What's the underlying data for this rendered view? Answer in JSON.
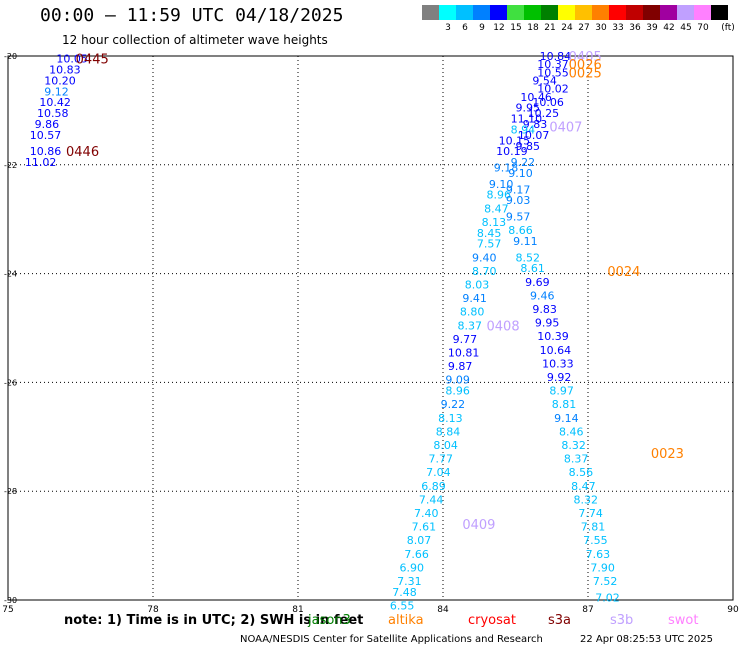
{
  "header": {
    "title": "00:00 – 11:59 UTC 04/18/2025",
    "subtitle": "12 hour collection of altimeter wave heights"
  },
  "colorbar": {
    "unit": "(ft)",
    "swatches": [
      {
        "color": "#808080",
        "label": ""
      },
      {
        "color": "#00ffff",
        "label": "3"
      },
      {
        "color": "#00c0ff",
        "label": "6"
      },
      {
        "color": "#0080ff",
        "label": "9"
      },
      {
        "color": "#0000ff",
        "label": "12"
      },
      {
        "color": "#40e040",
        "label": "15"
      },
      {
        "color": "#00c000",
        "label": "18"
      },
      {
        "color": "#008000",
        "label": "21"
      },
      {
        "color": "#ffff00",
        "label": "24"
      },
      {
        "color": "#ffc000",
        "label": "27"
      },
      {
        "color": "#ff8000",
        "label": "30"
      },
      {
        "color": "#ff0000",
        "label": "33"
      },
      {
        "color": "#c00000",
        "label": "36"
      },
      {
        "color": "#800000",
        "label": "39"
      },
      {
        "color": "#a000a0",
        "label": "42"
      },
      {
        "color": "#c0a0ff",
        "label": "45"
      },
      {
        "color": "#ff80ff",
        "label": "70"
      },
      {
        "color": "#000000",
        "label": ""
      }
    ]
  },
  "map_data": {
    "lon_range": [
      75,
      90
    ],
    "lat_range": [
      -30,
      -20
    ],
    "lon_ticks": [
      "75",
      "78",
      "81",
      "84",
      "87",
      "90"
    ],
    "lat_ticks": [
      "-20",
      "-22",
      "-24",
      "-26",
      "-28",
      "-30"
    ],
    "track_labels": [
      {
        "text": "0445",
        "lon": 76.4,
        "lat": -20.05,
        "color": "#800000"
      },
      {
        "text": "0446",
        "lon": 76.2,
        "lat": -21.75,
        "color": "#800000"
      },
      {
        "text": "0405",
        "lon": 86.6,
        "lat": -20.0,
        "color": "#c0a0ff"
      },
      {
        "text": "0026",
        "lon": 86.6,
        "lat": -20.15,
        "color": "#ff8000"
      },
      {
        "text": "0025",
        "lon": 86.6,
        "lat": -20.3,
        "color": "#ff8000"
      },
      {
        "text": "0407",
        "lon": 86.2,
        "lat": -21.3,
        "color": "#c0a0ff"
      },
      {
        "text": "0024",
        "lon": 87.4,
        "lat": -23.95,
        "color": "#ff8000"
      },
      {
        "text": "0408",
        "lon": 84.9,
        "lat": -24.95,
        "color": "#c0a0ff"
      },
      {
        "text": "0023",
        "lon": 88.3,
        "lat": -27.3,
        "color": "#ff8000"
      },
      {
        "text": "0409",
        "lon": 84.4,
        "lat": -28.6,
        "color": "#c0a0ff"
      }
    ],
    "measurements": [
      {
        "v": "10.05",
        "lon": 76.0,
        "lat": -20.05,
        "c": "#0000ff"
      },
      {
        "v": "10.83",
        "lon": 75.85,
        "lat": -20.25,
        "c": "#0000ff"
      },
      {
        "v": "10.20",
        "lon": 75.75,
        "lat": -20.45,
        "c": "#0000ff"
      },
      {
        "v": "9.12",
        "lon": 75.75,
        "lat": -20.65,
        "c": "#0080ff"
      },
      {
        "v": "10.42",
        "lon": 75.65,
        "lat": -20.85,
        "c": "#0000ff"
      },
      {
        "v": "10.58",
        "lon": 75.6,
        "lat": -21.05,
        "c": "#0000ff"
      },
      {
        "v": "9.86",
        "lon": 75.55,
        "lat": -21.25,
        "c": "#0000ff"
      },
      {
        "v": "10.57",
        "lon": 75.45,
        "lat": -21.45,
        "c": "#0000ff"
      },
      {
        "v": "10.86",
        "lon": 75.45,
        "lat": -21.75,
        "c": "#0000ff"
      },
      {
        "v": "11.02",
        "lon": 75.35,
        "lat": -21.95,
        "c": "#0000ff"
      },
      {
        "v": "10.84",
        "lon": 86.0,
        "lat": -20.0,
        "c": "#0000ff"
      },
      {
        "v": "10.37",
        "lon": 85.95,
        "lat": -20.15,
        "c": "#0000ff"
      },
      {
        "v": "10.55",
        "lon": 85.95,
        "lat": -20.3,
        "c": "#0000ff"
      },
      {
        "v": "9.54",
        "lon": 85.85,
        "lat": -20.45,
        "c": "#0000ff"
      },
      {
        "v": "10.02",
        "lon": 85.95,
        "lat": -20.6,
        "c": "#0000ff"
      },
      {
        "v": "10.46",
        "lon": 85.6,
        "lat": -20.75,
        "c": "#0000ff"
      },
      {
        "v": "10.06",
        "lon": 85.85,
        "lat": -20.85,
        "c": "#0000ff"
      },
      {
        "v": "9.95",
        "lon": 85.5,
        "lat": -20.95,
        "c": "#0000ff"
      },
      {
        "v": "10.25",
        "lon": 85.75,
        "lat": -21.05,
        "c": "#0000ff"
      },
      {
        "v": "11.10",
        "lon": 85.4,
        "lat": -21.15,
        "c": "#0000ff"
      },
      {
        "v": "9.83",
        "lon": 85.65,
        "lat": -21.25,
        "c": "#0000ff"
      },
      {
        "v": "8.94",
        "lon": 85.4,
        "lat": -21.35,
        "c": "#00c0ff"
      },
      {
        "v": "10.07",
        "lon": 85.55,
        "lat": -21.45,
        "c": "#0000ff"
      },
      {
        "v": "10.15",
        "lon": 85.15,
        "lat": -21.55,
        "c": "#0000ff"
      },
      {
        "v": "9.85",
        "lon": 85.5,
        "lat": -21.65,
        "c": "#0000ff"
      },
      {
        "v": "10.19",
        "lon": 85.1,
        "lat": -21.75,
        "c": "#0000ff"
      },
      {
        "v": "9.22",
        "lon": 85.4,
        "lat": -21.95,
        "c": "#0080ff"
      },
      {
        "v": "9.18",
        "lon": 85.05,
        "lat": -22.05,
        "c": "#0080ff"
      },
      {
        "v": "9.10",
        "lon": 85.35,
        "lat": -22.15,
        "c": "#0080ff"
      },
      {
        "v": "9.10",
        "lon": 84.95,
        "lat": -22.35,
        "c": "#0080ff"
      },
      {
        "v": "9.17",
        "lon": 85.3,
        "lat": -22.45,
        "c": "#0080ff"
      },
      {
        "v": "8.96",
        "lon": 84.9,
        "lat": -22.55,
        "c": "#00c0ff"
      },
      {
        "v": "9.03",
        "lon": 85.3,
        "lat": -22.65,
        "c": "#0080ff"
      },
      {
        "v": "8.47",
        "lon": 84.85,
        "lat": -22.8,
        "c": "#00c0ff"
      },
      {
        "v": "8.13",
        "lon": 84.8,
        "lat": -23.05,
        "c": "#00c0ff"
      },
      {
        "v": "9.57",
        "lon": 85.3,
        "lat": -22.95,
        "c": "#0080ff"
      },
      {
        "v": "8.66",
        "lon": 85.35,
        "lat": -23.2,
        "c": "#00c0ff"
      },
      {
        "v": "8.45",
        "lon": 84.7,
        "lat": -23.25,
        "c": "#00c0ff"
      },
      {
        "v": "9.11",
        "lon": 85.45,
        "lat": -23.4,
        "c": "#0080ff"
      },
      {
        "v": "7.57",
        "lon": 84.7,
        "lat": -23.45,
        "c": "#00c0ff"
      },
      {
        "v": "8.52",
        "lon": 85.5,
        "lat": -23.7,
        "c": "#00c0ff"
      },
      {
        "v": "9.40",
        "lon": 84.6,
        "lat": -23.7,
        "c": "#0080ff"
      },
      {
        "v": "8.61",
        "lon": 85.6,
        "lat": -23.9,
        "c": "#00c0ff"
      },
      {
        "v": "8.70",
        "lon": 84.6,
        "lat": -23.95,
        "c": "#00c0ff"
      },
      {
        "v": "9.69",
        "lon": 85.7,
        "lat": -24.15,
        "c": "#0000ff"
      },
      {
        "v": "8.03",
        "lon": 84.45,
        "lat": -24.2,
        "c": "#00c0ff"
      },
      {
        "v": "9.46",
        "lon": 85.8,
        "lat": -24.4,
        "c": "#0080ff"
      },
      {
        "v": "9.41",
        "lon": 84.4,
        "lat": -24.45,
        "c": "#0080ff"
      },
      {
        "v": "9.83",
        "lon": 85.85,
        "lat": -24.65,
        "c": "#0000ff"
      },
      {
        "v": "8.80",
        "lon": 84.35,
        "lat": -24.7,
        "c": "#00c0ff"
      },
      {
        "v": "9.95",
        "lon": 85.9,
        "lat": -24.9,
        "c": "#0000ff"
      },
      {
        "v": "8.37",
        "lon": 84.3,
        "lat": -24.95,
        "c": "#00c0ff"
      },
      {
        "v": "10.39",
        "lon": 85.95,
        "lat": -25.15,
        "c": "#0000ff"
      },
      {
        "v": "9.77",
        "lon": 84.2,
        "lat": -25.2,
        "c": "#0000ff"
      },
      {
        "v": "10.64",
        "lon": 86.0,
        "lat": -25.4,
        "c": "#0000ff"
      },
      {
        "v": "10.81",
        "lon": 84.1,
        "lat": -25.45,
        "c": "#0000ff"
      },
      {
        "v": "10.33",
        "lon": 86.05,
        "lat": -25.65,
        "c": "#0000ff"
      },
      {
        "v": "9.87",
        "lon": 84.1,
        "lat": -25.7,
        "c": "#0000ff"
      },
      {
        "v": "9.92",
        "lon": 86.15,
        "lat": -25.9,
        "c": "#0000ff"
      },
      {
        "v": "9.09",
        "lon": 84.05,
        "lat": -25.95,
        "c": "#0080ff"
      },
      {
        "v": "8.97",
        "lon": 86.2,
        "lat": -26.15,
        "c": "#00c0ff"
      },
      {
        "v": "8.96",
        "lon": 84.05,
        "lat": -26.15,
        "c": "#00c0ff"
      },
      {
        "v": "8.81",
        "lon": 86.25,
        "lat": -26.4,
        "c": "#00c0ff"
      },
      {
        "v": "9.22",
        "lon": 83.95,
        "lat": -26.4,
        "c": "#0080ff"
      },
      {
        "v": "9.14",
        "lon": 86.3,
        "lat": -26.65,
        "c": "#0080ff"
      },
      {
        "v": "8.13",
        "lon": 83.9,
        "lat": -26.65,
        "c": "#00c0ff"
      },
      {
        "v": "8.84",
        "lon": 83.85,
        "lat": -26.9,
        "c": "#00c0ff"
      },
      {
        "v": "8.46",
        "lon": 86.4,
        "lat": -26.9,
        "c": "#00c0ff"
      },
      {
        "v": "8.04",
        "lon": 83.8,
        "lat": -27.15,
        "c": "#00c0ff"
      },
      {
        "v": "8.32",
        "lon": 86.45,
        "lat": -27.15,
        "c": "#00c0ff"
      },
      {
        "v": "7.77",
        "lon": 83.7,
        "lat": -27.4,
        "c": "#00c0ff"
      },
      {
        "v": "8.37",
        "lon": 86.5,
        "lat": -27.4,
        "c": "#00c0ff"
      },
      {
        "v": "7.04",
        "lon": 83.65,
        "lat": -27.65,
        "c": "#00c0ff"
      },
      {
        "v": "8.56",
        "lon": 86.6,
        "lat": -27.65,
        "c": "#00c0ff"
      },
      {
        "v": "6.89",
        "lon": 83.55,
        "lat": -27.9,
        "c": "#00c0ff"
      },
      {
        "v": "8.47",
        "lon": 86.65,
        "lat": -27.9,
        "c": "#00c0ff"
      },
      {
        "v": "7.44",
        "lon": 83.5,
        "lat": -28.15,
        "c": "#00c0ff"
      },
      {
        "v": "8.32",
        "lon": 86.7,
        "lat": -28.15,
        "c": "#00c0ff"
      },
      {
        "v": "7.40",
        "lon": 83.4,
        "lat": -28.4,
        "c": "#00c0ff"
      },
      {
        "v": "7.74",
        "lon": 86.8,
        "lat": -28.4,
        "c": "#00c0ff"
      },
      {
        "v": "7.61",
        "lon": 83.35,
        "lat": -28.65,
        "c": "#00c0ff"
      },
      {
        "v": "7.81",
        "lon": 86.85,
        "lat": -28.65,
        "c": "#00c0ff"
      },
      {
        "v": "8.07",
        "lon": 83.25,
        "lat": -28.9,
        "c": "#00c0ff"
      },
      {
        "v": "7.55",
        "lon": 86.9,
        "lat": -28.9,
        "c": "#00c0ff"
      },
      {
        "v": "7.66",
        "lon": 83.2,
        "lat": -29.15,
        "c": "#00c0ff"
      },
      {
        "v": "7.63",
        "lon": 86.95,
        "lat": -29.15,
        "c": "#00c0ff"
      },
      {
        "v": "6.90",
        "lon": 83.1,
        "lat": -29.4,
        "c": "#00c0ff"
      },
      {
        "v": "7.90",
        "lon": 87.05,
        "lat": -29.4,
        "c": "#00c0ff"
      },
      {
        "v": "7.31",
        "lon": 83.05,
        "lat": -29.65,
        "c": "#00c0ff"
      },
      {
        "v": "7.52",
        "lon": 87.1,
        "lat": -29.65,
        "c": "#00c0ff"
      },
      {
        "v": "7.48",
        "lon": 82.95,
        "lat": -29.85,
        "c": "#00c0ff"
      },
      {
        "v": "7.02",
        "lon": 87.15,
        "lat": -29.95,
        "c": "#00c0ff"
      },
      {
        "v": "6.55",
        "lon": 82.9,
        "lat": -30.1,
        "c": "#00c0ff"
      }
    ]
  },
  "footer": {
    "note": "note: 1) Time is in UTC; 2) SWH is in feet",
    "satellites": [
      {
        "name": "jason3",
        "color": "#008000"
      },
      {
        "name": "altika",
        "color": "#ff8000"
      },
      {
        "name": "cryosat",
        "color": "#ff0000"
      },
      {
        "name": "s3a",
        "color": "#800000"
      },
      {
        "name": "s3b",
        "color": "#c0a0ff"
      },
      {
        "name": "swot",
        "color": "#ff80ff"
      }
    ],
    "credit": "NOAA/NESDIS Center for Satellite Applications and Research",
    "timestamp": "22 Apr 08:25:53 UTC 2025"
  }
}
